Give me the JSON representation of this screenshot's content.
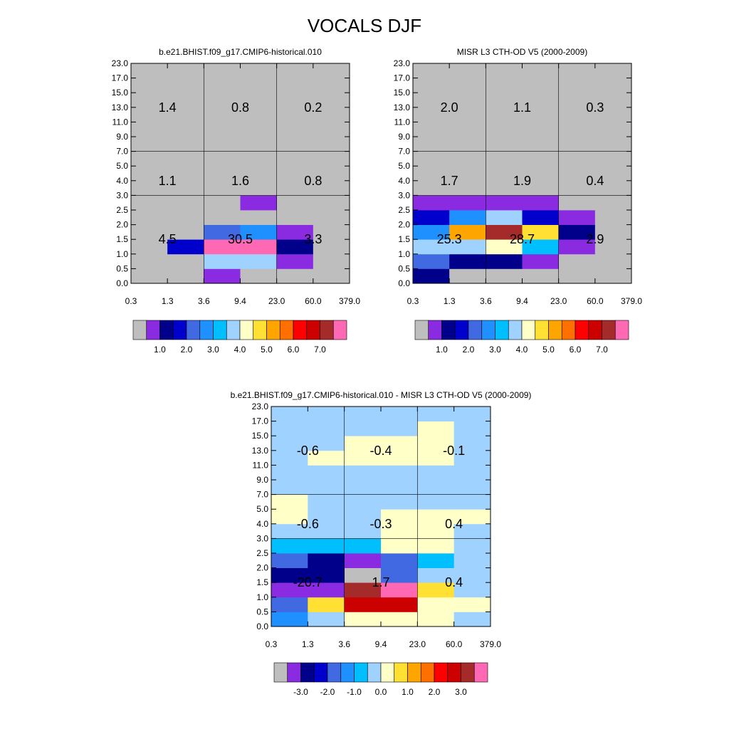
{
  "figure": {
    "title": "VOCALS DJF"
  },
  "axes": {
    "x_ticks": [
      "0.3",
      "1.3",
      "3.6",
      "9.4",
      "23.0",
      "60.0",
      "379.0"
    ],
    "y_ticks": [
      "0.0",
      "0.5",
      "1.0",
      "1.5",
      "2.0",
      "2.5",
      "3.0",
      "4.0",
      "5.0",
      "7.0",
      "9.0",
      "11.0",
      "13.0",
      "15.0",
      "17.0",
      "23.0"
    ]
  },
  "palettes": {
    "abs": [
      "#bebebe",
      "#8a2be2",
      "#00008b",
      "#0000cd",
      "#4169e1",
      "#1e90ff",
      "#00bfff",
      "#a0d2ff",
      "#ffffc8",
      "#ffe033",
      "#ffa500",
      "#ff7000",
      "#ff0000",
      "#cd0000",
      "#a52a2a",
      "#ff69b4"
    ],
    "diff": [
      "#bebebe",
      "#8a2be2",
      "#00008b",
      "#0000cd",
      "#4169e1",
      "#1e90ff",
      "#00bfff",
      "#a0d2ff",
      "#ffffc8",
      "#ffe033",
      "#ffa500",
      "#ff7000",
      "#ff0000",
      "#cd0000",
      "#a52a2a",
      "#ff69b4"
    ]
  },
  "colorbars": {
    "abs_labels": [
      "1.0",
      "2.0",
      "3.0",
      "4.0",
      "5.0",
      "6.0",
      "7.0"
    ],
    "diff_labels": [
      "-3.0",
      "-2.0",
      "-1.0",
      "0.0",
      "1.0",
      "2.0",
      "3.0"
    ]
  },
  "chart_data": [
    {
      "type": "heatmap",
      "title": "b.e21.BHIST.f09_g17.CMIP6-historical.010",
      "x_edges": [
        "0.3",
        "1.3",
        "3.6",
        "9.4",
        "23.0",
        "60.0",
        "379.0"
      ],
      "y_edges": [
        "0.0",
        "0.5",
        "1.0",
        "1.5",
        "2.0",
        "2.5",
        "3.0",
        "4.0",
        "5.0",
        "7.0",
        "9.0",
        "11.0",
        "13.0",
        "15.0",
        "17.0",
        "23.0"
      ],
      "cells": [
        [
          0,
          0,
          1,
          0,
          0,
          0
        ],
        [
          0,
          0,
          7,
          7,
          1,
          0
        ],
        [
          0,
          3,
          15,
          15,
          2,
          0
        ],
        [
          0,
          0,
          4,
          5,
          1,
          0
        ],
        [
          0,
          0,
          0,
          0,
          0,
          0
        ],
        [
          0,
          0,
          0,
          1,
          0,
          0
        ],
        [
          0,
          0,
          0,
          0,
          0,
          0
        ],
        [
          0,
          0,
          0,
          0,
          0,
          0
        ],
        [
          0,
          0,
          0,
          0,
          0,
          0
        ],
        [
          0,
          0,
          0,
          0,
          0,
          0
        ],
        [
          0,
          0,
          0,
          0,
          0,
          0
        ],
        [
          0,
          0,
          0,
          0,
          0,
          0
        ],
        [
          0,
          0,
          0,
          0,
          0,
          0
        ],
        [
          0,
          0,
          0,
          0,
          0,
          0
        ],
        [
          0,
          0,
          0,
          0,
          0,
          0
        ]
      ],
      "totals": [
        [
          "4.5",
          "30.5",
          "3.3"
        ],
        [
          "1.1",
          "1.6",
          "0.8"
        ],
        [
          "1.4",
          "0.8",
          "0.2"
        ]
      ]
    },
    {
      "type": "heatmap",
      "title": "MISR L3 CTH-OD V5 (2000-2009)",
      "x_edges": [
        "0.3",
        "1.3",
        "3.6",
        "9.4",
        "23.0",
        "60.0",
        "379.0"
      ],
      "y_edges": [
        "0.0",
        "0.5",
        "1.0",
        "1.5",
        "2.0",
        "2.5",
        "3.0",
        "4.0",
        "5.0",
        "7.0",
        "9.0",
        "11.0",
        "13.0",
        "15.0",
        "17.0",
        "23.0"
      ],
      "cells": [
        [
          2,
          0,
          0,
          0,
          0,
          0
        ],
        [
          4,
          2,
          2,
          1,
          0,
          0
        ],
        [
          7,
          7,
          8,
          6,
          1,
          0
        ],
        [
          5,
          10,
          14,
          9,
          2,
          0
        ],
        [
          3,
          5,
          7,
          3,
          1,
          0
        ],
        [
          1,
          1,
          1,
          1,
          0,
          0
        ],
        [
          0,
          0,
          0,
          0,
          0,
          0
        ],
        [
          0,
          0,
          0,
          0,
          0,
          0
        ],
        [
          0,
          0,
          0,
          0,
          0,
          0
        ],
        [
          0,
          0,
          0,
          0,
          0,
          0
        ],
        [
          0,
          0,
          0,
          0,
          0,
          0
        ],
        [
          0,
          0,
          0,
          0,
          0,
          0
        ],
        [
          0,
          0,
          0,
          0,
          0,
          0
        ],
        [
          0,
          0,
          0,
          0,
          0,
          0
        ],
        [
          0,
          0,
          0,
          0,
          0,
          0
        ]
      ],
      "totals": [
        [
          "25.3",
          "28.7",
          "2.9"
        ],
        [
          "1.7",
          "1.9",
          "0.4"
        ],
        [
          "2.0",
          "1.1",
          "0.3"
        ]
      ]
    },
    {
      "type": "heatmap",
      "title": "b.e21.BHIST.f09_g17.CMIP6-historical.010 - MISR L3 CTH-OD V5 (2000-2009)",
      "x_edges": [
        "0.3",
        "1.3",
        "3.6",
        "9.4",
        "23.0",
        "60.0",
        "379.0"
      ],
      "y_edges": [
        "0.0",
        "0.5",
        "1.0",
        "1.5",
        "2.0",
        "2.5",
        "3.0",
        "4.0",
        "5.0",
        "7.0",
        "9.0",
        "11.0",
        "13.0",
        "15.0",
        "17.0",
        "23.0"
      ],
      "cells": [
        [
          5,
          7,
          8,
          8,
          8,
          7
        ],
        [
          4,
          9,
          13,
          13,
          8,
          8
        ],
        [
          1,
          1,
          14,
          15,
          9,
          7
        ],
        [
          2,
          2,
          0,
          4,
          7,
          7
        ],
        [
          4,
          2,
          1,
          4,
          6,
          7
        ],
        [
          6,
          6,
          6,
          8,
          8,
          7
        ],
        [
          7,
          7,
          7,
          8,
          8,
          7
        ],
        [
          8,
          7,
          7,
          8,
          8,
          8
        ],
        [
          8,
          7,
          7,
          7,
          7,
          7
        ],
        [
          7,
          7,
          7,
          7,
          7,
          7
        ],
        [
          7,
          7,
          7,
          7,
          7,
          7
        ],
        [
          7,
          8,
          8,
          8,
          8,
          7
        ],
        [
          7,
          7,
          8,
          8,
          8,
          7
        ],
        [
          7,
          7,
          7,
          7,
          8,
          7
        ],
        [
          7,
          7,
          7,
          7,
          7,
          7
        ]
      ],
      "totals": [
        [
          "-20.7",
          "1.7",
          "0.4"
        ],
        [
          "-0.6",
          "-0.3",
          "0.4"
        ],
        [
          "-0.6",
          "-0.4",
          "-0.1"
        ]
      ]
    }
  ]
}
